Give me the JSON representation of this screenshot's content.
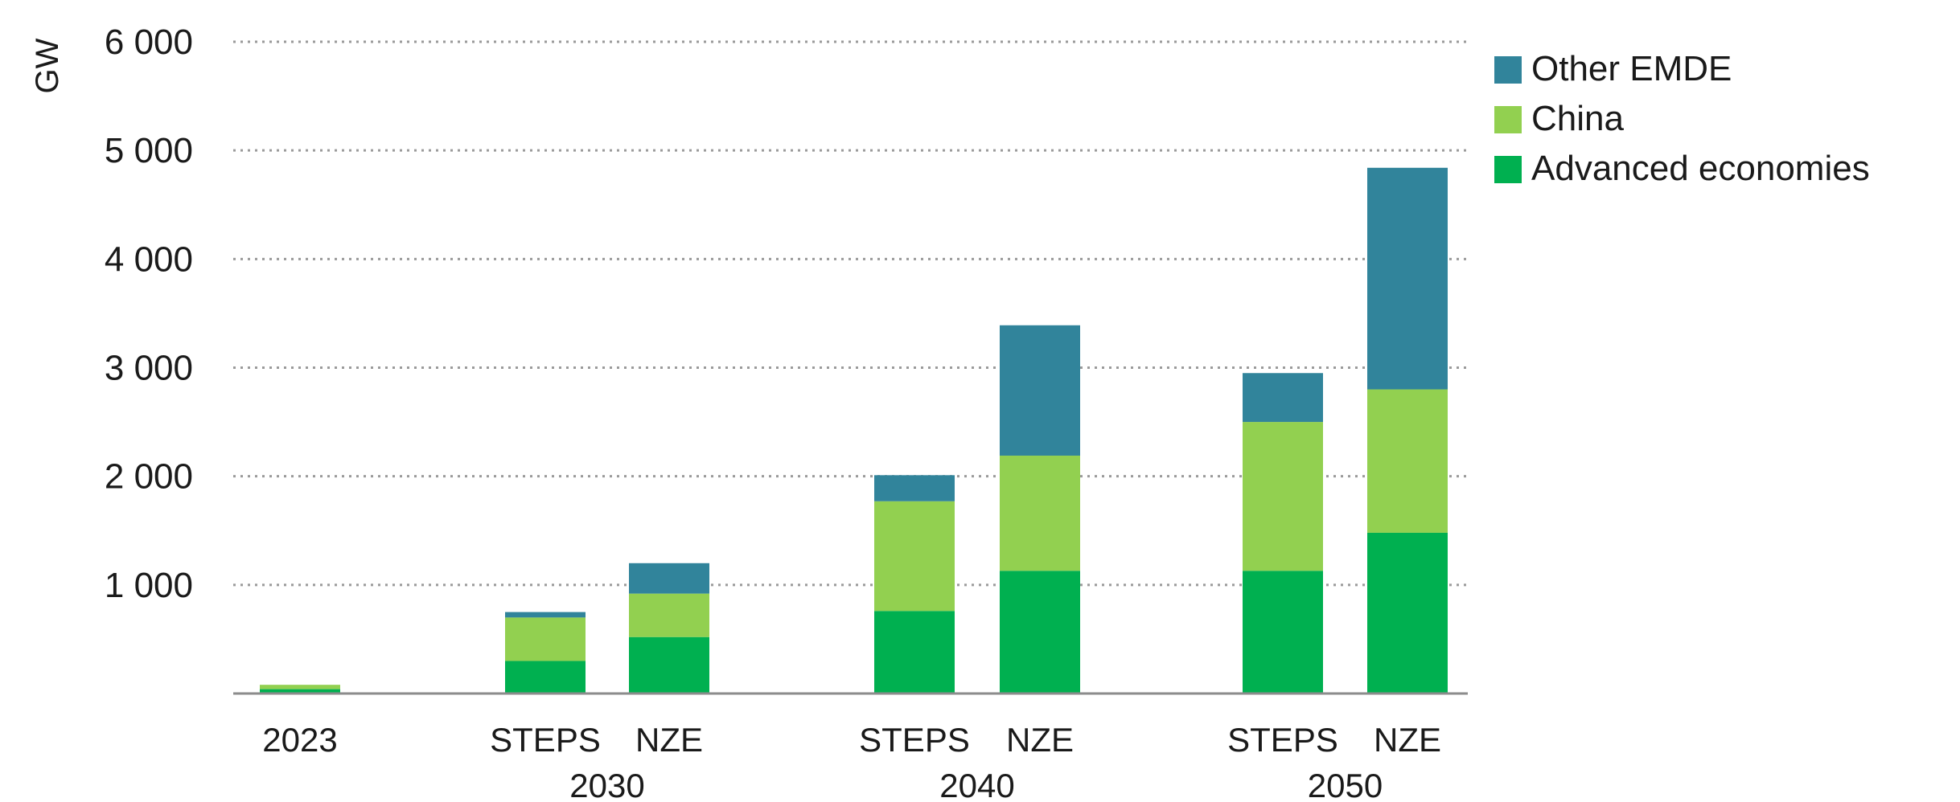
{
  "chart_data": {
    "type": "bar",
    "stacked": true,
    "ylabel": "GW",
    "ylim": [
      0,
      6000
    ],
    "yticks": [
      1000,
      2000,
      3000,
      4000,
      5000,
      6000
    ],
    "ytick_labels": [
      "1 000",
      "2 000",
      "3 000",
      "4 000",
      "5 000",
      "6 000"
    ],
    "grid": true,
    "legend_position": "top-right",
    "categories": [
      {
        "label": "2023",
        "group": ""
      },
      {
        "label": "STEPS",
        "group": "2030"
      },
      {
        "label": "NZE",
        "group": "2030"
      },
      {
        "label": "STEPS",
        "group": "2040"
      },
      {
        "label": "NZE",
        "group": "2040"
      },
      {
        "label": "STEPS",
        "group": "2050"
      },
      {
        "label": "NZE",
        "group": "2050"
      }
    ],
    "groups": [
      "2030",
      "2040",
      "2050"
    ],
    "series": [
      {
        "name": "Advanced economies",
        "color": "#00b050",
        "values": [
          40,
          300,
          520,
          760,
          1130,
          1130,
          1480
        ]
      },
      {
        "name": "China",
        "color": "#92d050",
        "values": [
          40,
          400,
          400,
          1010,
          1060,
          1370,
          1320
        ]
      },
      {
        "name": "Other EMDE",
        "color": "#31849b",
        "values": [
          0,
          50,
          280,
          240,
          1200,
          450,
          2040
        ]
      }
    ],
    "legend_order": [
      "Other EMDE",
      "China",
      "Advanced economies"
    ]
  }
}
